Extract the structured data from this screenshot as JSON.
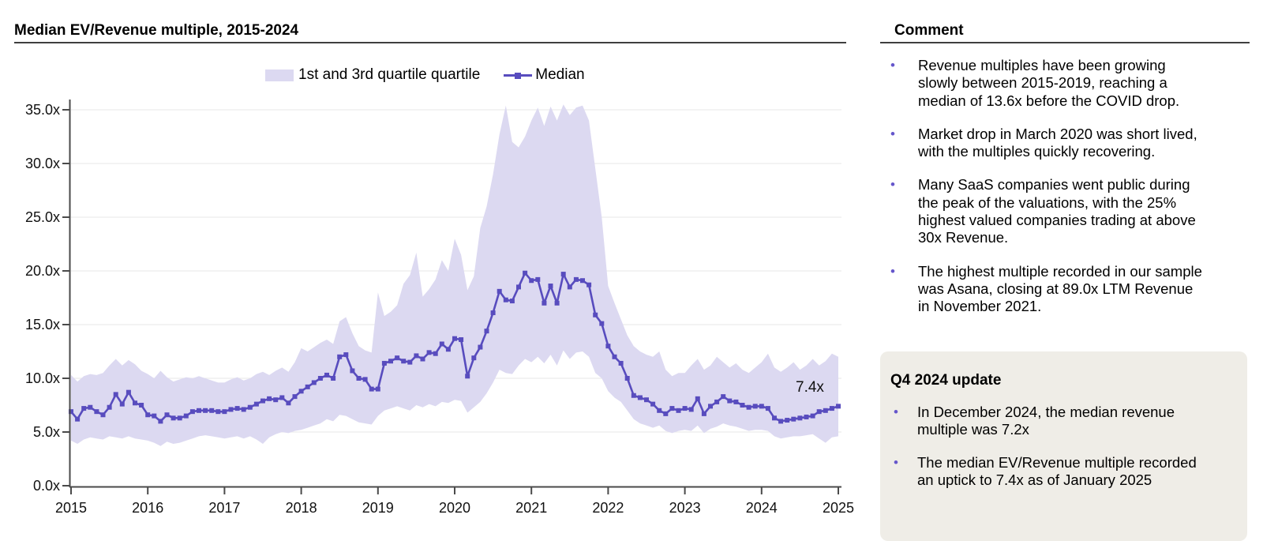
{
  "chart": {
    "title": "Median EV/Revenue multiple, 2015-2024",
    "legend": {
      "band_label": "1st and 3rd quartile quartile",
      "median_label": "Median"
    },
    "annotation_label": "7.4x",
    "colors": {
      "band": "#DCD9F1",
      "median": "#584CBE",
      "grid": "#ECECEC",
      "axis": "#4A4A4A",
      "tick_text": "#111111",
      "bullet": "#6556CB",
      "update_box_bg": "#EFEDE7"
    }
  },
  "chart_data": {
    "type": "line",
    "title": "Median EV/Revenue multiple, 2015-2024",
    "x_unit": "month",
    "x_start": "2015-01",
    "x_end": "2025-01",
    "x_tick_labels": [
      "2015",
      "2016",
      "2017",
      "2018",
      "2019",
      "2020",
      "2021",
      "2022",
      "2023",
      "2024",
      "2025"
    ],
    "y_tick_labels": [
      "0.0x",
      "5.0x",
      "10.0x",
      "15.0x",
      "20.0x",
      "25.0x",
      "30.0x",
      "35.0x"
    ],
    "ylim": [
      0,
      35
    ],
    "grid": "horizontal",
    "legend_position": "top-center",
    "annotation": {
      "text": "7.4x",
      "x": "2025-01",
      "y": 7.4
    },
    "series": [
      {
        "name": "Median",
        "style": "line+square-markers",
        "color": "#584CBE",
        "values": [
          6.9,
          6.2,
          7.2,
          7.3,
          6.9,
          6.6,
          7.3,
          8.5,
          7.6,
          8.7,
          7.7,
          7.5,
          6.6,
          6.5,
          6.0,
          6.6,
          6.3,
          6.3,
          6.5,
          6.9,
          7.0,
          7.0,
          7.0,
          6.9,
          6.9,
          7.1,
          7.2,
          7.1,
          7.3,
          7.6,
          7.9,
          8.1,
          8.0,
          8.2,
          7.7,
          8.3,
          8.8,
          9.2,
          9.6,
          10.0,
          10.3,
          10.0,
          12.0,
          12.2,
          10.7,
          10.0,
          9.9,
          9.0,
          9.0,
          11.4,
          11.6,
          11.9,
          11.6,
          11.5,
          12.1,
          11.8,
          12.4,
          12.3,
          13.2,
          12.7,
          13.7,
          13.6,
          10.2,
          11.9,
          12.9,
          14.4,
          16.1,
          18.1,
          17.3,
          17.2,
          18.5,
          19.8,
          19.1,
          19.2,
          17.0,
          18.6,
          17.0,
          19.7,
          18.5,
          19.2,
          19.1,
          18.7,
          15.9,
          15.1,
          13.0,
          12.0,
          11.4,
          10.0,
          8.4,
          8.2,
          8.0,
          7.6,
          7.0,
          6.7,
          7.2,
          7.0,
          7.2,
          7.1,
          8.1,
          6.7,
          7.4,
          7.8,
          8.3,
          7.9,
          7.8,
          7.5,
          7.3,
          7.4,
          7.4,
          7.2,
          6.3,
          6.0,
          6.1,
          6.2,
          6.3,
          6.4,
          6.5,
          6.9,
          7.0,
          7.2,
          7.4
        ]
      },
      {
        "name": "1st and 3rd quartile quartile",
        "style": "band",
        "color": "#DCD9F1",
        "upper": [
          10.3,
          9.7,
          10.2,
          10.4,
          10.3,
          10.5,
          11.2,
          11.8,
          11.2,
          11.7,
          11.3,
          10.7,
          10.4,
          10.0,
          10.7,
          10.1,
          9.7,
          9.9,
          10.1,
          10.0,
          10.2,
          10.0,
          9.8,
          9.6,
          9.6,
          9.9,
          10.1,
          9.8,
          10.0,
          10.4,
          10.6,
          10.3,
          10.7,
          11.0,
          10.6,
          11.5,
          12.8,
          12.5,
          12.9,
          13.3,
          13.6,
          13.2,
          15.3,
          15.7,
          14.2,
          13.0,
          12.6,
          12.4,
          18.0,
          15.8,
          16.2,
          16.8,
          18.8,
          19.6,
          21.7,
          17.6,
          18.3,
          19.2,
          21.0,
          20.0,
          23.0,
          21.5,
          18.2,
          19.5,
          24.0,
          26.0,
          29.0,
          32.7,
          35.4,
          32.0,
          31.5,
          32.5,
          34.0,
          35.2,
          33.5,
          35.3,
          34.0,
          35.5,
          34.5,
          35.2,
          35.4,
          34.0,
          29.5,
          25.0,
          18.6,
          17.0,
          15.5,
          14.0,
          13.0,
          12.5,
          12.2,
          12.0,
          12.5,
          10.8,
          10.2,
          10.5,
          10.5,
          11.2,
          11.8,
          10.8,
          11.2,
          12.0,
          11.5,
          11.0,
          11.4,
          10.8,
          10.5,
          11.0,
          11.5,
          12.3,
          11.0,
          10.6,
          11.0,
          11.5,
          10.8,
          11.2,
          11.8,
          11.2,
          11.6,
          12.3,
          12.0
        ],
        "lower": [
          4.2,
          3.9,
          4.3,
          4.5,
          4.4,
          4.3,
          4.6,
          4.5,
          4.4,
          4.6,
          4.4,
          4.3,
          4.2,
          4.0,
          3.7,
          4.1,
          3.9,
          4.0,
          4.2,
          4.4,
          4.6,
          4.7,
          4.6,
          4.5,
          4.4,
          4.5,
          4.6,
          4.4,
          4.6,
          4.3,
          3.9,
          4.5,
          4.8,
          5.0,
          4.9,
          5.1,
          5.2,
          5.4,
          5.6,
          5.8,
          6.2,
          6.0,
          6.6,
          6.5,
          6.2,
          5.9,
          5.8,
          5.7,
          6.5,
          7.0,
          7.2,
          7.4,
          7.2,
          7.0,
          7.5,
          7.3,
          7.6,
          7.4,
          7.8,
          7.7,
          8.0,
          7.9,
          6.8,
          7.3,
          7.8,
          8.6,
          9.6,
          10.8,
          10.5,
          10.4,
          11.2,
          11.8,
          11.5,
          12.0,
          11.4,
          12.2,
          11.2,
          12.6,
          11.8,
          12.4,
          12.5,
          12.0,
          10.5,
          10.0,
          8.8,
          8.2,
          7.8,
          7.0,
          6.2,
          5.8,
          5.6,
          5.4,
          5.6,
          5.1,
          4.9,
          5.1,
          5.2,
          5.1,
          5.6,
          4.9,
          5.3,
          5.5,
          5.8,
          5.6,
          5.5,
          5.3,
          5.1,
          5.2,
          5.2,
          5.1,
          4.6,
          4.4,
          4.5,
          4.6,
          4.6,
          4.7,
          4.8,
          4.4,
          4.0,
          4.5,
          4.6
        ]
      }
    ]
  },
  "comment": {
    "heading": "Comment",
    "bullets": [
      "Revenue multiples have been growing\nslowly between 2015-2019, reaching a\nmedian of 13.6x before the COVID drop.",
      "Market drop in March 2020 was short lived,\nwith the multiples quickly recovering.",
      "Many SaaS companies went public during\nthe peak of the valuations, with the 25%\nhighest valued companies trading at above\n30x Revenue.",
      "The highest multiple recorded in our sample\nwas Asana, closing at 89.0x LTM Revenue\nin November 2021."
    ]
  },
  "update_box": {
    "heading": "Q4 2024 update",
    "bullets": [
      "In December 2024, the median revenue\nmultiple was 7.2x",
      "The median EV/Revenue multiple recorded\nan uptick to 7.4x as of January 2025"
    ]
  }
}
